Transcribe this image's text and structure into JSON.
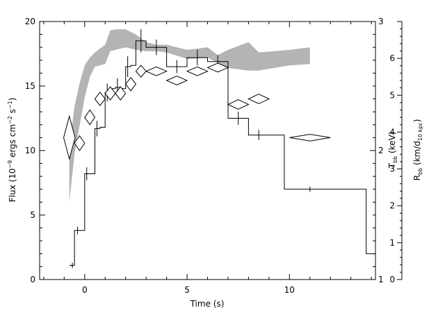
{
  "chart_data": {
    "type": "line",
    "xlabel": "Time (s)",
    "ylabel_left": {
      "main": "Flux (10",
      "exp1": "−9",
      "mid": " ergs cm",
      "exp2": "−2",
      "mid2": " s",
      "exp3": "−1",
      "end": ")"
    },
    "ylabel_right1": {
      "main": "T",
      "sub": "bb",
      "end": " (keV)"
    },
    "ylabel_right2": {
      "main": "R",
      "sub": "bb",
      "mid": " (km/d",
      "sub2": "10 kpc",
      "end": ")"
    },
    "x_range": [
      -2.2,
      14.2
    ],
    "y_left_range": [
      0,
      20
    ],
    "y_t_range": [
      1,
      3
    ],
    "y_r_range": [
      0,
      7
    ],
    "x_ticks": [
      0,
      5,
      10
    ],
    "y_left_ticks": [
      0,
      5,
      10,
      15,
      20
    ],
    "y_t_ticks": [
      1,
      2,
      3
    ],
    "y_r_ticks": [
      0,
      1,
      2,
      3,
      4,
      5,
      6
    ],
    "flux_series": {
      "steps": [
        {
          "x0": -0.75,
          "x1": -0.5,
          "y": 1.1
        },
        {
          "x0": -0.5,
          "x1": -0.25,
          "y": 3.8
        },
        {
          "x0": -0.25,
          "x1": 0.0,
          "y": 3.8
        },
        {
          "x0": 0.0,
          "x1": 0.25,
          "y": 8.2
        },
        {
          "x0": 0.25,
          "x1": 0.5,
          "y": 8.2
        },
        {
          "x0": 0.5,
          "x1": 0.75,
          "y": 11.7
        },
        {
          "x0": 0.75,
          "x1": 1.0,
          "y": 11.8
        },
        {
          "x0": 1.0,
          "x1": 1.25,
          "y": 14.5
        },
        {
          "x0": 1.25,
          "x1": 1.5,
          "y": 14.8
        },
        {
          "x0": 1.5,
          "x1": 1.75,
          "y": 14.9
        },
        {
          "x0": 1.75,
          "x1": 2.0,
          "y": 14.8
        },
        {
          "x0": 2.0,
          "x1": 2.25,
          "y": 16.5
        },
        {
          "x0": 2.25,
          "x1": 2.5,
          "y": 16.6
        },
        {
          "x0": 2.5,
          "x1": 3.0,
          "y": 18.5
        },
        {
          "x0": 3.0,
          "x1": 4.0,
          "y": 18.0
        },
        {
          "x0": 4.0,
          "x1": 5.0,
          "y": 16.5
        },
        {
          "x0": 5.0,
          "x1": 6.0,
          "y": 17.2
        },
        {
          "x0": 6.0,
          "x1": 7.0,
          "y": 16.9
        },
        {
          "x0": 7.0,
          "x1": 8.0,
          "y": 12.5
        },
        {
          "x0": 8.0,
          "x1": 9.75,
          "y": 11.2
        },
        {
          "x0": 9.75,
          "x1": 13.75,
          "y": 7.0
        },
        {
          "x0": 13.75,
          "x1": 14.2,
          "y": 2.0
        }
      ],
      "errors": [
        {
          "x": -0.6,
          "y": 1.1,
          "e": 0.2
        },
        {
          "x": -0.35,
          "y": 3.8,
          "e": 0.3
        },
        {
          "x": 0.1,
          "y": 8.2,
          "e": 0.5
        },
        {
          "x": 0.6,
          "y": 11.7,
          "e": 0.6
        },
        {
          "x": 1.1,
          "y": 14.5,
          "e": 0.7
        },
        {
          "x": 1.6,
          "y": 14.9,
          "e": 0.7
        },
        {
          "x": 2.1,
          "y": 16.5,
          "e": 0.8
        },
        {
          "x": 2.75,
          "y": 18.5,
          "e": 0.9
        },
        {
          "x": 3.5,
          "y": 18.0,
          "e": 0.6
        },
        {
          "x": 4.5,
          "y": 16.5,
          "e": 0.5
        },
        {
          "x": 5.5,
          "y": 17.2,
          "e": 0.6
        },
        {
          "x": 6.5,
          "y": 16.9,
          "e": 0.5
        },
        {
          "x": 7.5,
          "y": 12.5,
          "e": 0.5
        },
        {
          "x": 8.5,
          "y": 11.2,
          "e": 0.4
        },
        {
          "x": 11.0,
          "y": 7.0,
          "e": 0.2
        }
      ]
    },
    "temperature_band": {
      "x": [
        -0.75,
        -0.5,
        -0.25,
        0.0,
        0.25,
        0.5,
        1.0,
        1.25,
        1.5,
        2.0,
        2.5,
        3.0,
        3.5,
        4.0,
        5.0,
        6.0,
        6.5,
        7.0,
        8.0,
        8.5,
        10.0,
        11.0
      ],
      "upper": [
        2.02,
        2.34,
        2.52,
        2.66,
        2.72,
        2.76,
        2.82,
        2.93,
        2.94,
        2.94,
        2.9,
        2.84,
        2.82,
        2.82,
        2.78,
        2.8,
        2.74,
        2.78,
        2.84,
        2.76,
        2.78,
        2.8
      ],
      "lower": [
        1.6,
        1.97,
        2.19,
        2.41,
        2.57,
        2.65,
        2.67,
        2.77,
        2.78,
        2.8,
        2.78,
        2.77,
        2.77,
        2.76,
        2.71,
        2.72,
        2.68,
        2.64,
        2.62,
        2.62,
        2.66,
        2.67
      ]
    },
    "radius_diamonds": [
      {
        "x": -0.75,
        "y": 3.85,
        "dx": 0.28,
        "dy": 0.58
      },
      {
        "x": -0.25,
        "y": 3.7,
        "dx": 0.25,
        "dy": 0.2
      },
      {
        "x": 0.25,
        "y": 4.4,
        "dx": 0.25,
        "dy": 0.2
      },
      {
        "x": 0.75,
        "y": 4.9,
        "dx": 0.25,
        "dy": 0.18
      },
      {
        "x": 1.25,
        "y": 5.05,
        "dx": 0.25,
        "dy": 0.18
      },
      {
        "x": 1.75,
        "y": 5.05,
        "dx": 0.25,
        "dy": 0.18
      },
      {
        "x": 2.25,
        "y": 5.3,
        "dx": 0.25,
        "dy": 0.18
      },
      {
        "x": 2.75,
        "y": 5.65,
        "dx": 0.25,
        "dy": 0.16
      },
      {
        "x": 3.5,
        "y": 5.65,
        "dx": 0.5,
        "dy": 0.12
      },
      {
        "x": 4.5,
        "y": 5.4,
        "dx": 0.5,
        "dy": 0.12
      },
      {
        "x": 5.5,
        "y": 5.65,
        "dx": 0.5,
        "dy": 0.12
      },
      {
        "x": 6.5,
        "y": 5.75,
        "dx": 0.5,
        "dy": 0.12
      },
      {
        "x": 7.5,
        "y": 4.75,
        "dx": 0.5,
        "dy": 0.13
      },
      {
        "x": 8.5,
        "y": 4.9,
        "dx": 0.5,
        "dy": 0.13
      },
      {
        "x": 11.0,
        "y": 3.85,
        "dx": 1.0,
        "dy": 0.09
      }
    ]
  }
}
